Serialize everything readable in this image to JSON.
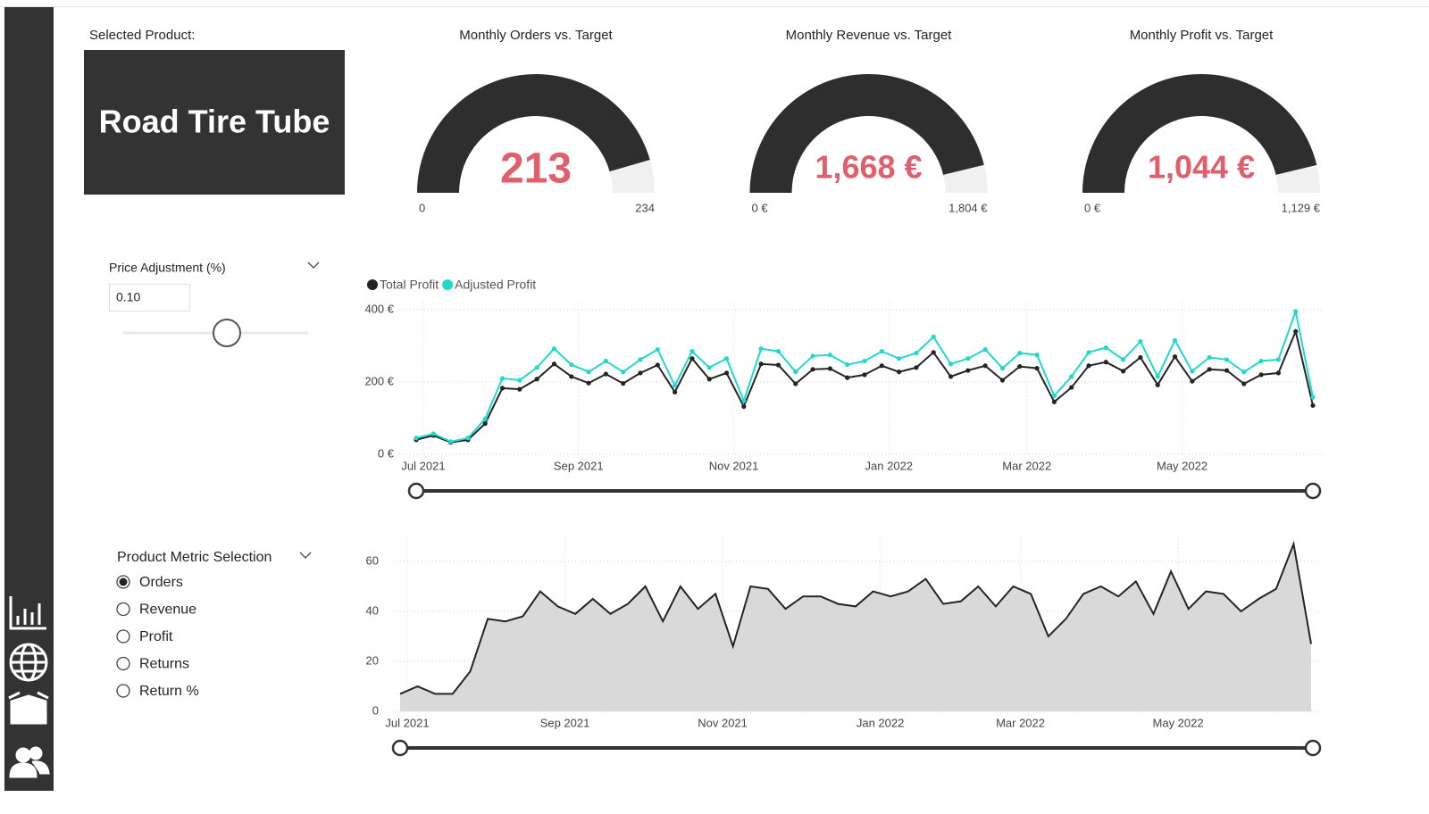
{
  "product_card": {
    "label": "Selected Product:",
    "value": "Road Tire Tube"
  },
  "price_adjustment": {
    "label": "Price Adjustment (%)",
    "value": {
      "value": 0.1,
      "label": "0.10"
    }
  },
  "metric_selection": {
    "title": "Product Metric Selection",
    "options": [
      "Orders",
      "Revenue",
      "Profit",
      "Returns",
      "Return %"
    ],
    "selected": 0
  },
  "chart_data": [
    {
      "type": "gauge",
      "title": "Monthly Orders vs. Target",
      "value": 213,
      "min": 0,
      "max": 234,
      "color": "#2e2e2e",
      "value_color": "#df5f6c"
    },
    {
      "type": "gauge",
      "title": "Monthly Revenue vs. Target",
      "value": 1668,
      "value_label": "1,668 €",
      "min": {
        "value": 0,
        "label": "0 €"
      },
      "max": {
        "value": 1804,
        "label": "1,804 €"
      },
      "color": "#2e2e2e",
      "value_color": "#df5f6c"
    },
    {
      "type": "gauge",
      "title": "Monthly Profit vs. Target",
      "value": 1044,
      "value_label": "1,044 €",
      "min": {
        "value": 0,
        "label": "0 €"
      },
      "max": {
        "value": 1129,
        "label": "1,129 €"
      },
      "color": "#2e2e2e",
      "value_color": "#df5f6c"
    },
    {
      "type": "line",
      "grid": true,
      "categories": [
        "Jul 2021",
        null,
        null,
        null,
        null,
        null,
        null,
        null,
        null,
        "Sep 2021",
        null,
        null,
        null,
        null,
        null,
        null,
        null,
        null,
        "Nov 2021",
        null,
        null,
        null,
        null,
        null,
        null,
        null,
        null,
        "Jan 2022",
        null,
        null,
        null,
        null,
        null,
        null,
        null,
        "Mar 2022",
        null,
        null,
        null,
        null,
        null,
        null,
        null,
        null,
        "May 2022",
        null,
        null,
        null,
        null,
        null,
        null,
        null,
        null
      ],
      "series": [
        {
          "name": "Total Profit",
          "color": "#252423",
          "values": [
            40,
            52,
            33,
            40,
            85,
            183,
            180,
            208,
            250,
            215,
            197,
            222,
            196,
            225,
            247,
            172,
            265,
            208,
            225,
            132,
            250,
            247,
            195,
            235,
            237,
            212,
            220,
            245,
            228,
            240,
            282,
            215,
            232,
            245,
            205,
            243,
            238,
            145,
            185,
            245,
            255,
            230,
            268,
            192,
            270,
            202,
            235,
            232,
            195,
            220,
            225,
            340,
            135
          ]
        },
        {
          "name": "Adjusted Profit",
          "color": "#22d8cc",
          "values": [
            45,
            57,
            35,
            45,
            98,
            210,
            205,
            240,
            292,
            248,
            228,
            258,
            228,
            262,
            290,
            190,
            285,
            240,
            265,
            148,
            292,
            285,
            228,
            272,
            275,
            248,
            258,
            285,
            265,
            280,
            325,
            250,
            265,
            290,
            238,
            280,
            275,
            162,
            215,
            282,
            295,
            262,
            312,
            215,
            315,
            230,
            268,
            262,
            228,
            258,
            262,
            395,
            158
          ]
        }
      ],
      "ylim": [
        0,
        420
      ],
      "yticks": [
        {
          "value": 0,
          "label": "0 €"
        },
        {
          "value": 200,
          "label": "200 €"
        },
        {
          "value": 400,
          "label": "400 €"
        }
      ]
    },
    {
      "type": "area",
      "grid": true,
      "categories": [
        "Jul 2021",
        null,
        null,
        null,
        null,
        null,
        null,
        null,
        null,
        "Sep 2021",
        null,
        null,
        null,
        null,
        null,
        null,
        null,
        null,
        "Nov 2021",
        null,
        null,
        null,
        null,
        null,
        null,
        null,
        null,
        "Jan 2022",
        null,
        null,
        null,
        null,
        null,
        null,
        null,
        "Mar 2022",
        null,
        null,
        null,
        null,
        null,
        null,
        null,
        null,
        "May 2022",
        null,
        null,
        null,
        null,
        null,
        null,
        null,
        null
      ],
      "values": [
        7,
        10,
        7,
        7,
        16,
        37,
        36,
        38,
        48,
        42,
        39,
        45,
        39,
        43,
        50,
        36,
        50,
        41,
        47,
        26,
        50,
        49,
        41,
        46,
        46,
        43,
        42,
        48,
        46,
        48,
        53,
        43,
        44,
        50,
        42,
        50,
        47,
        30,
        37,
        47,
        50,
        46,
        52,
        39,
        56,
        41,
        48,
        47,
        40,
        45,
        49,
        67,
        27
      ],
      "color": "#d9d9d9",
      "line_color": "#252423",
      "ylim": [
        0,
        70
      ],
      "yticks": [
        0,
        20,
        40,
        60
      ]
    }
  ]
}
